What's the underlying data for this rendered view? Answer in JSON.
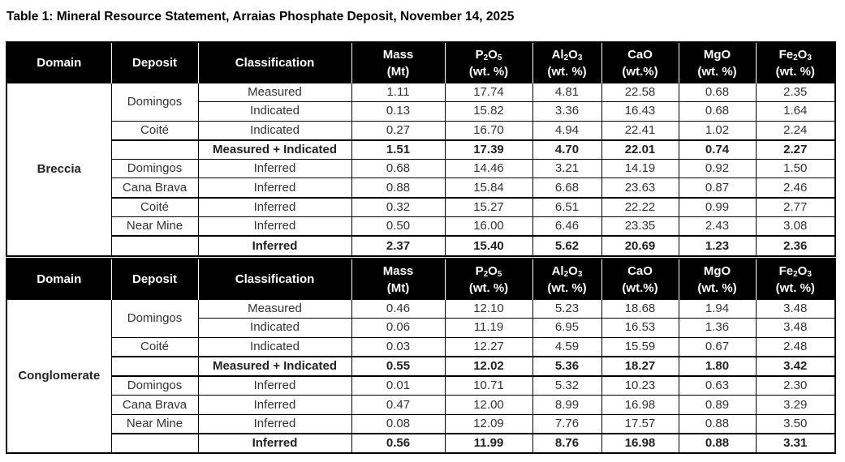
{
  "title": "Table 1: Mineral Resource Statement, Arraias Phosphate Deposit, November 14, 2025",
  "headers": [
    {
      "main": "Domain"
    },
    {
      "main": "Deposit"
    },
    {
      "main": "Classification"
    },
    {
      "main": "Mass",
      "unit": "(Mt)"
    },
    {
      "a": "P",
      "s1": "2",
      "b": "O",
      "s2": "5",
      "unit": "(wt. %)"
    },
    {
      "a": "Al",
      "s1": "2",
      "b": "O",
      "s2": "3",
      "unit": "(wt. %)"
    },
    {
      "main": "CaO",
      "unit": "(wt.%)"
    },
    {
      "main": "MgO",
      "unit": "(wt. %)"
    },
    {
      "a": "Fe",
      "s1": "2",
      "b": "O",
      "s2": "3",
      "unit": "(wt. %)"
    }
  ],
  "tables": [
    {
      "domain": "Breccia",
      "rows": [
        {
          "deposit": "Domingos",
          "span": 2,
          "classification": "Measured",
          "values": [
            "1.11",
            "17.74",
            "4.81",
            "22.58",
            "0.68",
            "2.35"
          ]
        },
        {
          "deposit": null,
          "classification": "Indicated",
          "values": [
            "0.13",
            "15.82",
            "3.36",
            "16.43",
            "0.68",
            "1.64"
          ]
        },
        {
          "deposit": "Coité",
          "classification": "Indicated",
          "values": [
            "0.27",
            "16.70",
            "4.94",
            "22.41",
            "1.02",
            "2.24"
          ]
        },
        {
          "deposit": "",
          "classification": "Measured + Indicated",
          "bold": true,
          "values": [
            "1.51",
            "17.39",
            "4.70",
            "22.01",
            "0.74",
            "2.27"
          ]
        },
        {
          "deposit": "Domingos",
          "classification": "Inferred",
          "values": [
            "0.68",
            "14.46",
            "3.21",
            "14.19",
            "0.92",
            "1.50"
          ]
        },
        {
          "deposit": "Cana Brava",
          "classification": "Inferred",
          "values": [
            "0.88",
            "15.84",
            "6.68",
            "23.63",
            "0.87",
            "2.46"
          ]
        },
        {
          "deposit": "Coité",
          "classification": "Inferred",
          "values": [
            "0.32",
            "15.27",
            "6.51",
            "22.22",
            "0.99",
            "2.77"
          ]
        },
        {
          "deposit": "Near Mine",
          "classification": "Inferred",
          "values": [
            "0.50",
            "16.00",
            "6.46",
            "23.35",
            "2.43",
            "3.08"
          ]
        },
        {
          "deposit": "",
          "classification": "Inferred",
          "bold": true,
          "values": [
            "2.37",
            "15.40",
            "5.62",
            "20.69",
            "1.23",
            "2.36"
          ]
        }
      ]
    },
    {
      "domain": "Conglomerate",
      "rows": [
        {
          "deposit": "Domingos",
          "span": 2,
          "classification": "Measured",
          "values": [
            "0.46",
            "12.10",
            "5.23",
            "18.68",
            "1.94",
            "3.48"
          ]
        },
        {
          "deposit": null,
          "classification": "Indicated",
          "values": [
            "0.06",
            "11.19",
            "6.95",
            "16.53",
            "1.36",
            "3.48"
          ]
        },
        {
          "deposit": "Coité",
          "classification": "Indicated",
          "values": [
            "0.03",
            "12.27",
            "4.59",
            "15.59",
            "0.67",
            "2.48"
          ]
        },
        {
          "deposit": "",
          "classification": "Measured + Indicated",
          "bold": true,
          "values": [
            "0.55",
            "12.02",
            "5.36",
            "18.27",
            "1.80",
            "3.42"
          ]
        },
        {
          "deposit": "Domingos",
          "classification": "Inferred",
          "values": [
            "0.01",
            "10.71",
            "5.32",
            "10.23",
            "0.63",
            "2.30"
          ]
        },
        {
          "deposit": "Cana Brava",
          "classification": "Inferred",
          "values": [
            "0.47",
            "12.00",
            "8.99",
            "16.98",
            "0.89",
            "3.29"
          ]
        },
        {
          "deposit": "Near Mine",
          "classification": "Inferred",
          "values": [
            "0.08",
            "12.09",
            "7.76",
            "17.57",
            "0.88",
            "3.50"
          ]
        },
        {
          "deposit": "",
          "classification": "Inferred",
          "bold": true,
          "values": [
            "0.56",
            "11.99",
            "8.76",
            "16.98",
            "0.88",
            "3.31"
          ]
        }
      ]
    }
  ]
}
